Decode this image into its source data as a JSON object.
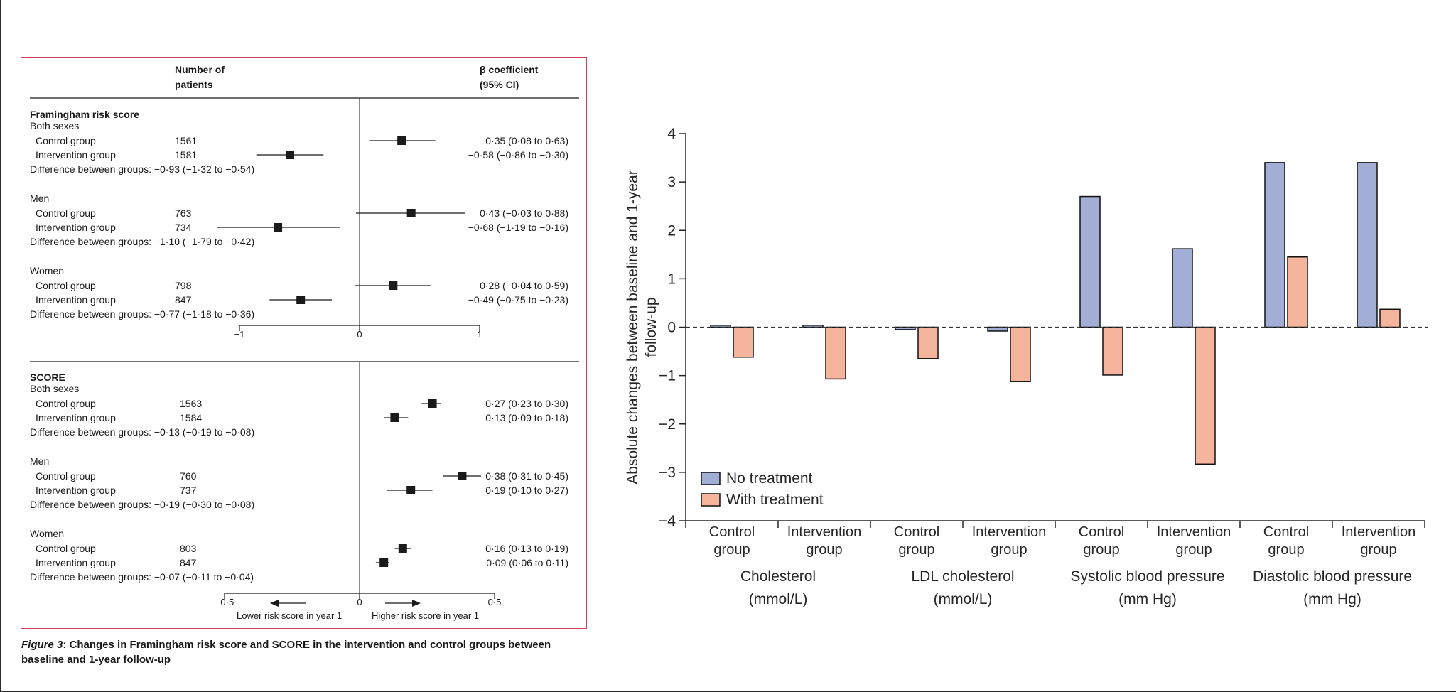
{
  "forest_plot": {
    "header": {
      "patients_line1": "Number of",
      "patients_line2": "patients",
      "beta_line1": "β coefficient",
      "beta_line2": "(95% CI)"
    },
    "panels": [
      {
        "title": "Framingham risk score",
        "axis_ticks": [
          "−1",
          "0",
          "1"
        ],
        "axis_range": [
          -1,
          1
        ],
        "groups": [
          {
            "name": "Both sexes",
            "rows": [
              {
                "label": "Control group",
                "n": "1561",
                "ci_text": "0·35 (0·08 to 0·63)",
                "est": 0.35,
                "low": 0.08,
                "high": 0.63
              },
              {
                "label": "Intervention group",
                "n": "1581",
                "ci_text": "−0·58 (−0·86 to −0·30)",
                "est": -0.58,
                "low": -0.86,
                "high": -0.3
              }
            ],
            "difference": "Difference between groups: −0·93 (−1·32 to −0·54)"
          },
          {
            "name": "Men",
            "rows": [
              {
                "label": "Control group",
                "n": "763",
                "ci_text": "0·43 (−0·03 to 0·88)",
                "est": 0.43,
                "low": -0.03,
                "high": 0.88
              },
              {
                "label": "Intervention group",
                "n": "734",
                "ci_text": "−0·68 (−1·19 to −0·16)",
                "est": -0.68,
                "low": -1.19,
                "high": -0.16
              }
            ],
            "difference": "Difference between groups: −1·10 (−1·79 to −0·42)"
          },
          {
            "name": "Women",
            "rows": [
              {
                "label": "Control group",
                "n": "798",
                "ci_text": "0·28 (−0·04 to 0·59)",
                "est": 0.28,
                "low": -0.04,
                "high": 0.59
              },
              {
                "label": "Intervention group",
                "n": "847",
                "ci_text": "−0·49 (−0·75 to −0·23)",
                "est": -0.49,
                "low": -0.75,
                "high": -0.23
              }
            ],
            "difference": "Difference between groups: −0·77 (−1·18 to −0·36)"
          }
        ]
      },
      {
        "title": "SCORE",
        "axis_ticks": [
          "−0·5",
          "0",
          "0·5"
        ],
        "axis_range": [
          -0.5,
          0.5
        ],
        "groups": [
          {
            "name": "Both sexes",
            "rows": [
              {
                "label": "Control group",
                "n": "1563",
                "ci_text": "0·27 (0·23 to 0·30)",
                "est": 0.27,
                "low": 0.23,
                "high": 0.3
              },
              {
                "label": "Intervention group",
                "n": "1584",
                "ci_text": "0·13 (0·09 to 0·18)",
                "est": 0.13,
                "low": 0.09,
                "high": 0.18
              }
            ],
            "difference": "Difference between groups: −0·13 (−0·19 to −0·08)"
          },
          {
            "name": "Men",
            "rows": [
              {
                "label": "Control group",
                "n": "760",
                "ci_text": "0·38 (0·31 to 0·45)",
                "est": 0.38,
                "low": 0.31,
                "high": 0.45
              },
              {
                "label": "Intervention group",
                "n": "737",
                "ci_text": "0·19 (0·10 to 0·27)",
                "est": 0.19,
                "low": 0.1,
                "high": 0.27
              }
            ],
            "difference": "Difference between groups: −0·19 (−0·30 to −0·08)"
          },
          {
            "name": "Women",
            "rows": [
              {
                "label": "Control group",
                "n": "803",
                "ci_text": "0·16 (0·13 to 0·19)",
                "est": 0.16,
                "low": 0.13,
                "high": 0.19
              },
              {
                "label": "Intervention group",
                "n": "847",
                "ci_text": "0·09 (0·06 to 0·11)",
                "est": 0.09,
                "low": 0.06,
                "high": 0.11
              }
            ],
            "difference": "Difference between groups: −0·07 (−0·11 to −0·04)"
          }
        ]
      }
    ],
    "lower_label": "Lower risk score in year 1",
    "higher_label": "Higher risk score in year 1"
  },
  "caption": {
    "label": "Figure 3",
    "text": ": Changes in Framingham risk score and SCORE in the intervention and control groups between baseline and 1-year follow-up"
  },
  "colors": {
    "border": "#d23f57",
    "no_treatment": "#a3aed6",
    "with_treatment": "#f5b49c",
    "ink": "#1a1a1a"
  },
  "chart_data": {
    "type": "bar",
    "ylabel_line1": "Absolute changes between baseline and 1-year",
    "ylabel_line2": "follow-up",
    "ylim": [
      -4,
      4
    ],
    "yticks": [
      "4",
      "3",
      "2",
      "1",
      "0",
      "−1",
      "−2",
      "−3",
      "−4"
    ],
    "ytick_values": [
      4,
      3,
      2,
      1,
      0,
      -1,
      -2,
      -3,
      -4
    ],
    "categories": [
      {
        "sub": [
          "Control",
          "group"
        ],
        "measure": "Cholesterol"
      },
      {
        "sub": [
          "Intervention",
          "group"
        ],
        "measure": "Cholesterol"
      },
      {
        "sub": [
          "Control",
          "group"
        ],
        "measure": "LDL cholesterol"
      },
      {
        "sub": [
          "Intervention",
          "group"
        ],
        "measure": "LDL cholesterol"
      },
      {
        "sub": [
          "Control",
          "group"
        ],
        "measure": "Systolic blood pressure"
      },
      {
        "sub": [
          "Intervention",
          "group"
        ],
        "measure": "Systolic blood pressure"
      },
      {
        "sub": [
          "Control",
          "group"
        ],
        "measure": "Diastolic blood pressure"
      },
      {
        "sub": [
          "Intervention",
          "group"
        ],
        "measure": "Diastolic blood pressure"
      }
    ],
    "measures": [
      {
        "line1": "Cholesterol",
        "line2": "(mmol/L)"
      },
      {
        "line1": "LDL cholesterol",
        "line2": "(mmol/L)"
      },
      {
        "line1": "Systolic blood pressure",
        "line2": "(mm Hg)"
      },
      {
        "line1": "Diastolic blood pressure",
        "line2": "(mm Hg)"
      }
    ],
    "series": [
      {
        "name": "No treatment",
        "values": [
          0.04,
          0.04,
          -0.05,
          -0.08,
          2.7,
          1.62,
          3.4,
          3.4
        ]
      },
      {
        "name": "With treatment",
        "values": [
          -0.62,
          -1.07,
          -0.65,
          -1.12,
          -0.99,
          -2.83,
          1.45,
          0.37
        ]
      }
    ],
    "legend_position": "bottom-left",
    "zero_line": "dashed"
  }
}
